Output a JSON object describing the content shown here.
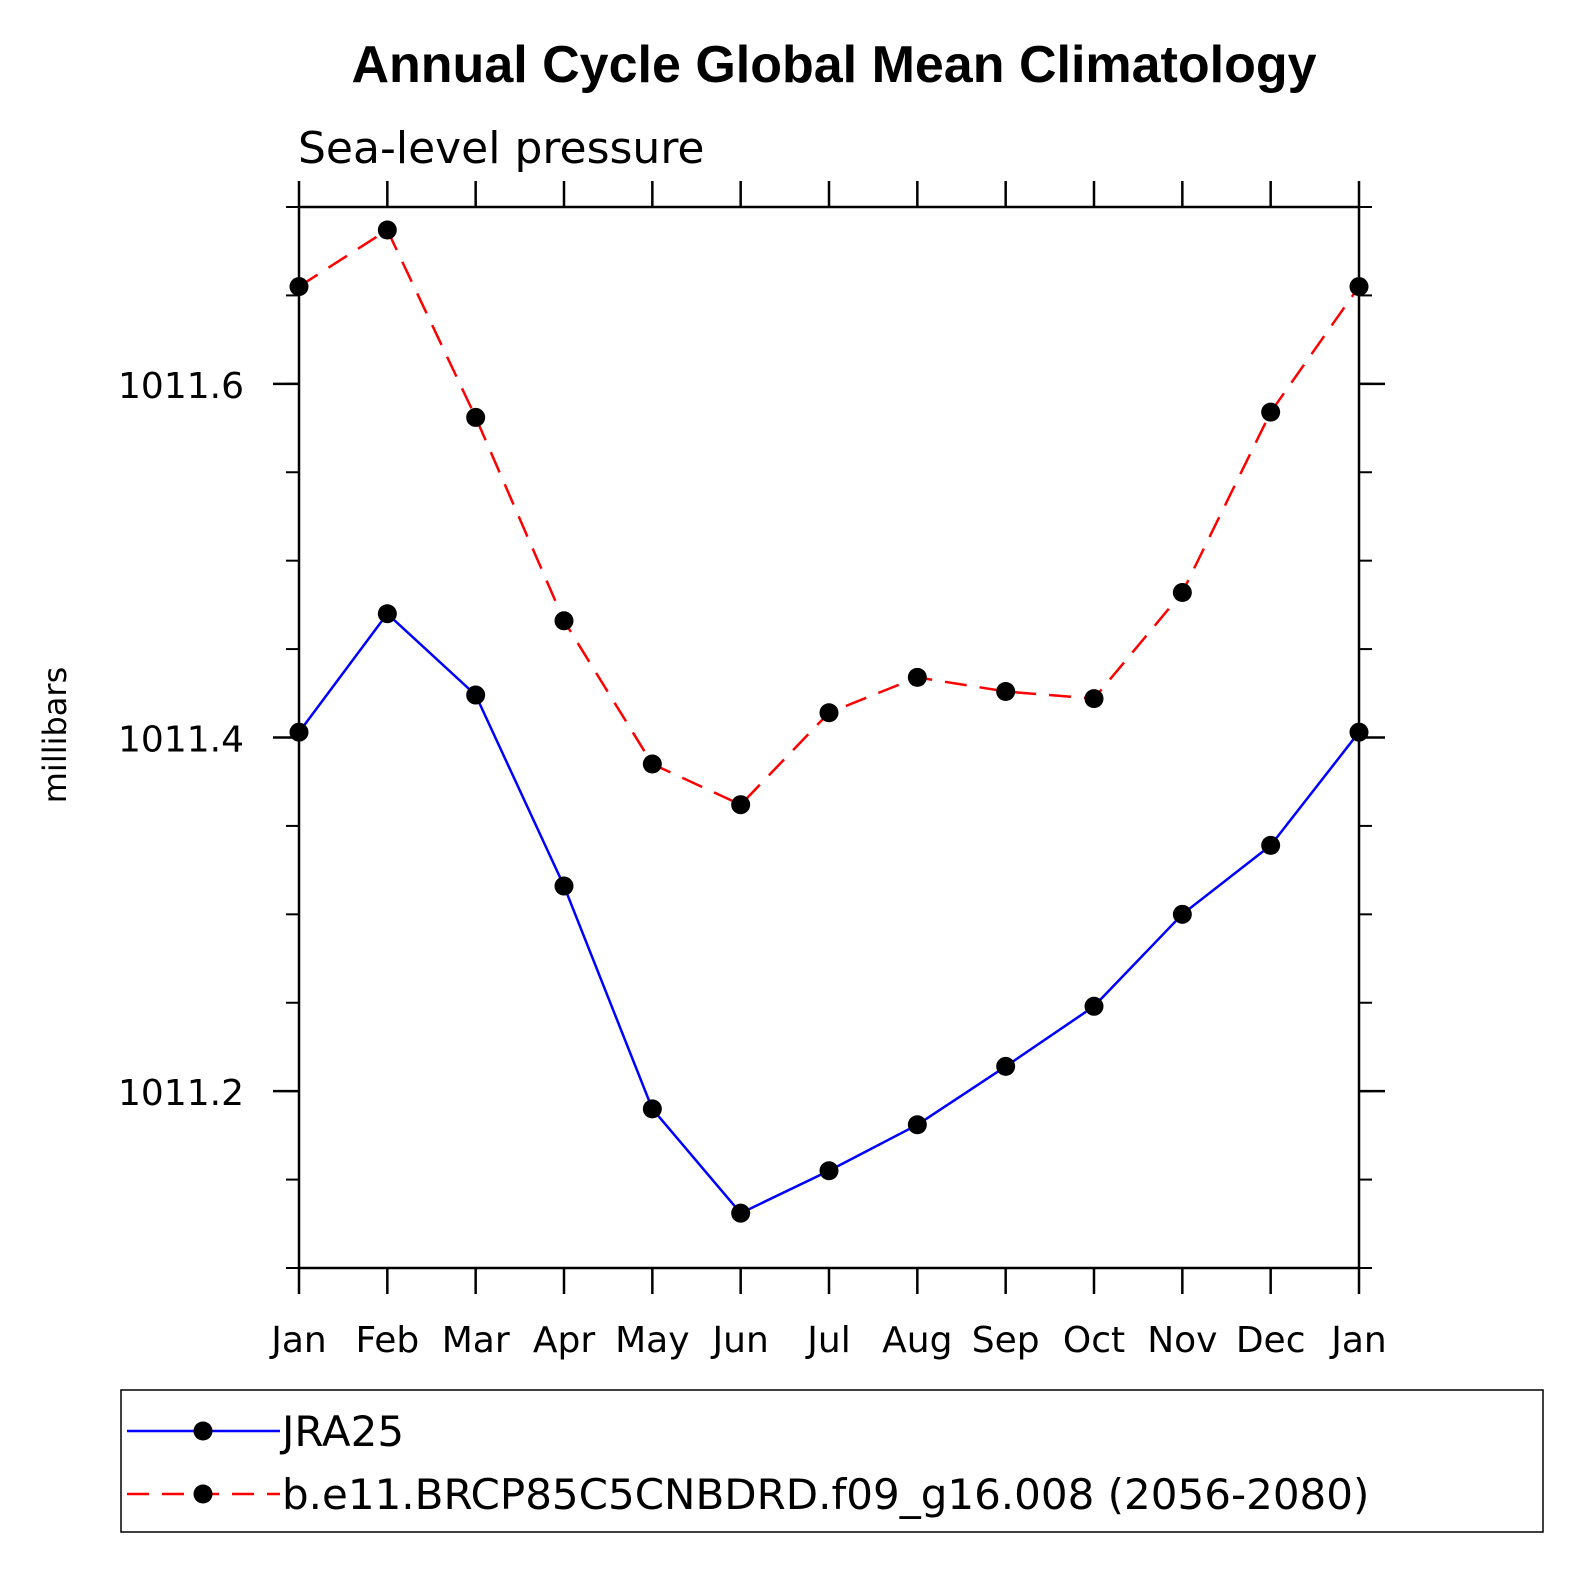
{
  "chart_data": {
    "type": "line",
    "title": "Annual Cycle Global Mean Climatology",
    "subtitle": "Sea-level pressure",
    "xlabel": "",
    "ylabel": "millibars",
    "categories": [
      "Jan",
      "Feb",
      "Mar",
      "Apr",
      "May",
      "Jun",
      "Jul",
      "Aug",
      "Sep",
      "Oct",
      "Nov",
      "Dec",
      "Jan"
    ],
    "ylim": [
      1011.1,
      1011.7
    ],
    "yticks_major": [
      1011.2,
      1011.4,
      1011.6
    ],
    "ytick_labels": [
      "1011.2",
      "1011.4",
      "1011.6"
    ],
    "ytick_minor_step": 0.05,
    "grid": false,
    "legend_position": "bottom",
    "series": [
      {
        "name": "JRA25",
        "color": "#0000ff",
        "line_style": "solid",
        "marker": "filled-circle",
        "values": [
          1011.403,
          1011.47,
          1011.424,
          1011.316,
          1011.19,
          1011.131,
          1011.155,
          1011.181,
          1011.214,
          1011.248,
          1011.3,
          1011.339,
          1011.403
        ]
      },
      {
        "name": "b.e11.BRCP85C5CNBDRD.f09_g16.008 (2056-2080)",
        "color": "#ff0000",
        "line_style": "dashed",
        "marker": "filled-circle",
        "values": [
          1011.655,
          1011.687,
          1011.581,
          1011.466,
          1011.385,
          1011.362,
          1011.414,
          1011.434,
          1011.426,
          1011.422,
          1011.482,
          1011.584,
          1011.655
        ]
      }
    ]
  }
}
